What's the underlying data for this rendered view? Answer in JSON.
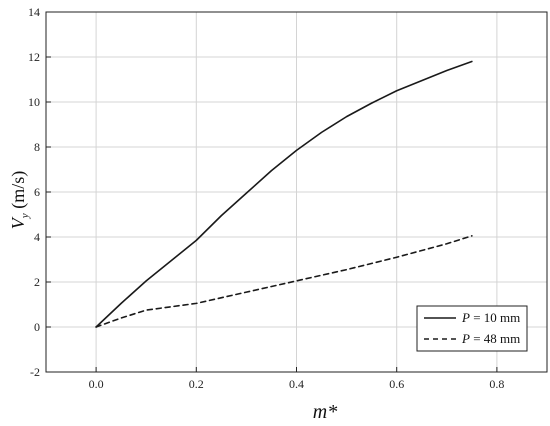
{
  "chart_data": {
    "type": "line",
    "xlabel": "m*",
    "ylabel_main": "V",
    "ylabel_sub": "y",
    "ylabel_unit": " (m/s)",
    "xlim": [
      -0.1,
      0.9
    ],
    "ylim": [
      -2,
      14
    ],
    "xticks": [
      0.0,
      0.2,
      0.4,
      0.6,
      0.8
    ],
    "xtick_labels": [
      "0.0",
      "0.2",
      "0.4",
      "0.6",
      "0.8"
    ],
    "yticks": [
      -2,
      0,
      2,
      4,
      6,
      8,
      10,
      12,
      14
    ],
    "ytick_labels": [
      "-2",
      "0",
      "2",
      "4",
      "6",
      "8",
      "10",
      "12",
      "14"
    ],
    "grid": true,
    "legend_position": "bottom-right",
    "series": [
      {
        "name": "P = 10 mm",
        "name_var": "P",
        "name_rest": " = 10 mm",
        "style": "solid",
        "color": "#1a1a1a",
        "x": [
          0.0,
          0.05,
          0.1,
          0.15,
          0.2,
          0.25,
          0.3,
          0.35,
          0.4,
          0.45,
          0.5,
          0.55,
          0.6,
          0.65,
          0.7,
          0.75
        ],
        "y": [
          0.0,
          1.05,
          2.05,
          2.95,
          3.85,
          4.95,
          5.95,
          6.95,
          7.85,
          8.65,
          9.35,
          9.95,
          10.5,
          10.95,
          11.4,
          11.8
        ]
      },
      {
        "name": "P = 48 mm",
        "name_var": "P",
        "name_rest": " = 48 mm",
        "style": "dashed",
        "color": "#1a1a1a",
        "x": [
          0.0,
          0.05,
          0.1,
          0.15,
          0.2,
          0.3,
          0.4,
          0.5,
          0.6,
          0.7,
          0.75
        ],
        "y": [
          0.0,
          0.4,
          0.75,
          0.9,
          1.05,
          1.55,
          2.05,
          2.55,
          3.1,
          3.7,
          4.05
        ]
      }
    ]
  }
}
